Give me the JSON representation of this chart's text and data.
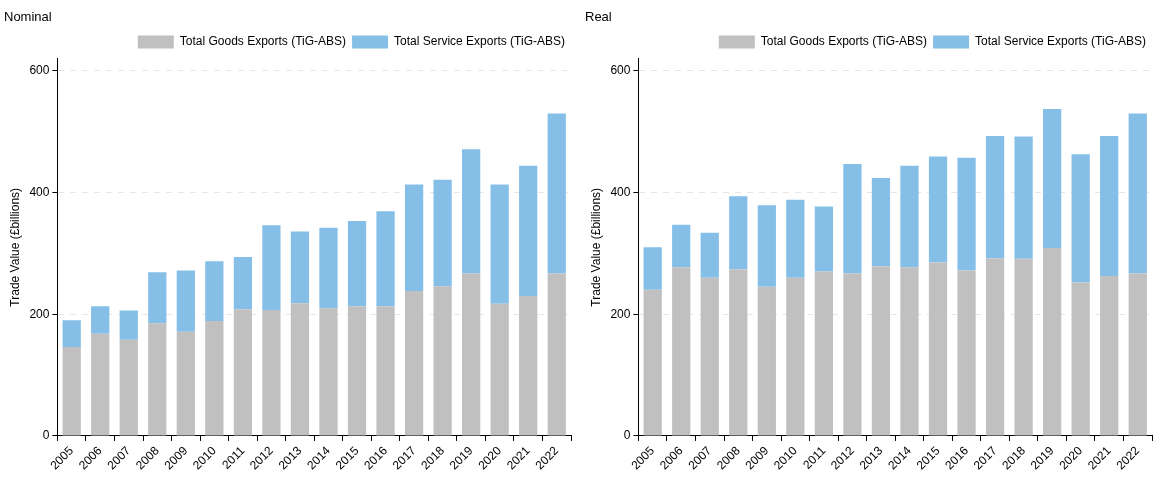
{
  "chart_data": [
    {
      "type": "bar",
      "title": "Nominal",
      "ylabel": "Trade Value (£billions)",
      "stacked": true,
      "grid": "y",
      "legend": "top right",
      "ylim": [
        0,
        620
      ],
      "yticks": [
        0,
        200,
        400,
        600
      ],
      "categories": [
        "2005",
        "2006",
        "2007",
        "2008",
        "2009",
        "2010",
        "2011",
        "2012",
        "2013",
        "2014",
        "2015",
        "2016",
        "2017",
        "2018",
        "2019",
        "2020",
        "2021",
        "2022"
      ],
      "series": [
        {
          "name": "Total Goods Exports (TiG-ABS)",
          "color": "#c0c0c0",
          "values": [
            146,
            168,
            158,
            185,
            171,
            189,
            208,
            207,
            218,
            210,
            213,
            213,
            238,
            246,
            267,
            217,
            230,
            267
          ]
        },
        {
          "name": "Total Service Exports (TiG-ABS)",
          "color": "#85bfe8",
          "values": [
            44,
            45,
            48,
            84,
            101,
            98,
            86,
            139,
            118,
            132,
            140,
            156,
            175,
            175,
            204,
            196,
            214,
            263
          ]
        }
      ]
    },
    {
      "type": "bar",
      "title": "Real",
      "ylabel": "Trade Value (£billions)",
      "stacked": true,
      "grid": "y",
      "legend": "top right",
      "ylim": [
        0,
        620
      ],
      "yticks": [
        0,
        200,
        400,
        600
      ],
      "categories": [
        "2005",
        "2006",
        "2007",
        "2008",
        "2009",
        "2010",
        "2011",
        "2012",
        "2013",
        "2014",
        "2015",
        "2016",
        "2017",
        "2018",
        "2019",
        "2020",
        "2021",
        "2022"
      ],
      "series": [
        {
          "name": "Total Goods Exports (TiG-ABS)",
          "color": "#c0c0c0",
          "values": [
            240,
            277,
            260,
            274,
            245,
            260,
            270,
            267,
            279,
            277,
            285,
            272,
            292,
            291,
            309,
            252,
            263,
            267
          ]
        },
        {
          "name": "Total Service Exports (TiG-ABS)",
          "color": "#85bfe8",
          "values": [
            70,
            70,
            74,
            120,
            134,
            128,
            107,
            180,
            145,
            167,
            174,
            185,
            201,
            201,
            228,
            211,
            230,
            263
          ]
        }
      ]
    }
  ]
}
